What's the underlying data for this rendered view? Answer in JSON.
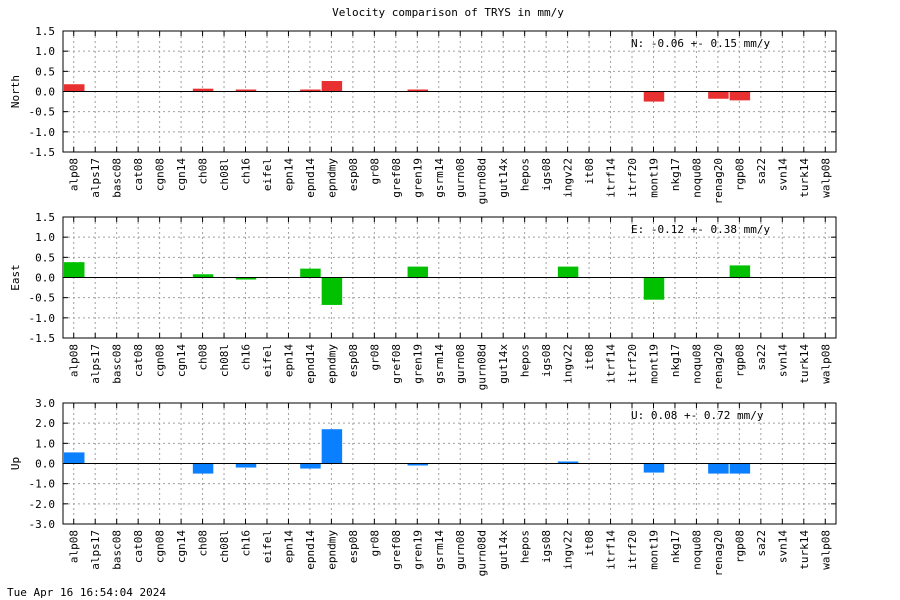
{
  "title": "Velocity comparison of TRYS in mm/y",
  "footer": "Tue Apr 16 16:54:04 2024",
  "chart_data": [
    {
      "type": "bar",
      "component": "North",
      "ylabel": "North",
      "ylim": [
        -1.5,
        1.5
      ],
      "yticks": [
        "1.5",
        "1.0",
        "0.5",
        "0.0",
        "-0.5",
        "-1.0",
        "-1.5"
      ],
      "grid": true,
      "color": "#e83030",
      "annotation": "N:  -0.06 +-  0.15 mm/y",
      "categories": [
        "alp08",
        "alps17",
        "basc08",
        "cat08",
        "cgn08",
        "cgn14",
        "ch08",
        "ch08l",
        "ch16",
        "eifel",
        "epn14",
        "epnd14",
        "epndmy",
        "esp08",
        "gr08",
        "gref08",
        "gren19",
        "gsrm14",
        "gurn08",
        "gurn08d",
        "gut14x",
        "hepos",
        "igs08",
        "ingv22",
        "it08",
        "itrf14",
        "itrf20",
        "mont19",
        "nkg17",
        "noqu08",
        "renag20",
        "rgp08",
        "sa22",
        "svn14",
        "turk14",
        "walp08"
      ],
      "values": [
        0.18,
        0,
        0,
        0,
        0,
        0,
        0.07,
        0,
        0.02,
        0,
        0,
        0.02,
        0.26,
        0,
        0,
        0,
        0.02,
        0,
        0,
        0,
        0,
        0,
        0,
        0,
        0,
        0,
        0,
        -0.25,
        0,
        0,
        -0.18,
        -0.22,
        0,
        0,
        0,
        0
      ],
      "has_bar": [
        true,
        false,
        false,
        false,
        false,
        false,
        true,
        false,
        true,
        false,
        false,
        true,
        true,
        false,
        false,
        false,
        true,
        false,
        false,
        false,
        false,
        false,
        false,
        false,
        false,
        false,
        false,
        true,
        false,
        false,
        true,
        true,
        false,
        false,
        false,
        false
      ]
    },
    {
      "type": "bar",
      "component": "East",
      "ylabel": "East",
      "ylim": [
        -1.5,
        1.5
      ],
      "yticks": [
        "1.5",
        "1.0",
        "0.5",
        "0.0",
        "-0.5",
        "-1.0",
        "-1.5"
      ],
      "grid": true,
      "color": "#00c000",
      "annotation": "E:  -0.12 +-  0.38 mm/y",
      "categories": [
        "alp08",
        "alps17",
        "basc08",
        "cat08",
        "cgn08",
        "cgn14",
        "ch08",
        "ch08l",
        "ch16",
        "eifel",
        "epn14",
        "epnd14",
        "epndmy",
        "esp08",
        "gr08",
        "gref08",
        "gren19",
        "gsrm14",
        "gurn08",
        "gurn08d",
        "gut14x",
        "hepos",
        "igs08",
        "ingv22",
        "it08",
        "itrf14",
        "itrf20",
        "mont19",
        "nkg17",
        "noqu08",
        "renag20",
        "rgp08",
        "sa22",
        "svn14",
        "turk14",
        "walp08"
      ],
      "values": [
        0.38,
        0,
        0,
        0,
        0,
        0,
        0.08,
        0,
        -0.05,
        0,
        0,
        0.22,
        -0.68,
        0,
        0,
        0,
        0.27,
        0,
        0,
        0,
        0,
        0,
        0,
        0.27,
        0,
        0,
        0,
        -0.55,
        0,
        0,
        0,
        0.3,
        0,
        0,
        0,
        0
      ],
      "has_bar": [
        true,
        false,
        false,
        false,
        false,
        false,
        true,
        false,
        true,
        false,
        false,
        true,
        true,
        false,
        false,
        false,
        true,
        false,
        false,
        false,
        false,
        false,
        false,
        true,
        false,
        false,
        false,
        true,
        false,
        false,
        false,
        true,
        false,
        false,
        false,
        false
      ]
    },
    {
      "type": "bar",
      "component": "Up",
      "ylabel": "Up",
      "ylim": [
        -3.0,
        3.0
      ],
      "yticks": [
        "3.0",
        "2.0",
        "1.0",
        "0.0",
        "-1.0",
        "-2.0",
        "-3.0"
      ],
      "grid": true,
      "color": "#0a7fff",
      "annotation": "U:   0.08 +-  0.72 mm/y",
      "categories": [
        "alp08",
        "alps17",
        "basc08",
        "cat08",
        "cgn08",
        "cgn14",
        "ch08",
        "ch08l",
        "ch16",
        "eifel",
        "epn14",
        "epnd14",
        "epndmy",
        "esp08",
        "gr08",
        "gref08",
        "gren19",
        "gsrm14",
        "gurn08",
        "gurn08d",
        "gut14x",
        "hepos",
        "igs08",
        "ingv22",
        "it08",
        "itrf14",
        "itrf20",
        "mont19",
        "nkg17",
        "noqu08",
        "renag20",
        "rgp08",
        "sa22",
        "svn14",
        "turk14",
        "walp08"
      ],
      "values": [
        0.55,
        0,
        0,
        0,
        0,
        0,
        -0.5,
        0,
        -0.2,
        0,
        0,
        -0.25,
        1.7,
        0,
        0,
        0,
        -0.08,
        0,
        0,
        0,
        0,
        0,
        0,
        0.08,
        0,
        0,
        0,
        -0.45,
        0,
        0,
        -0.5,
        -0.5,
        0,
        0,
        0,
        0
      ],
      "has_bar": [
        true,
        false,
        false,
        false,
        false,
        false,
        true,
        false,
        true,
        false,
        false,
        true,
        true,
        false,
        false,
        false,
        true,
        false,
        false,
        false,
        false,
        false,
        false,
        true,
        false,
        false,
        false,
        true,
        false,
        false,
        true,
        true,
        false,
        false,
        false,
        false
      ]
    }
  ]
}
